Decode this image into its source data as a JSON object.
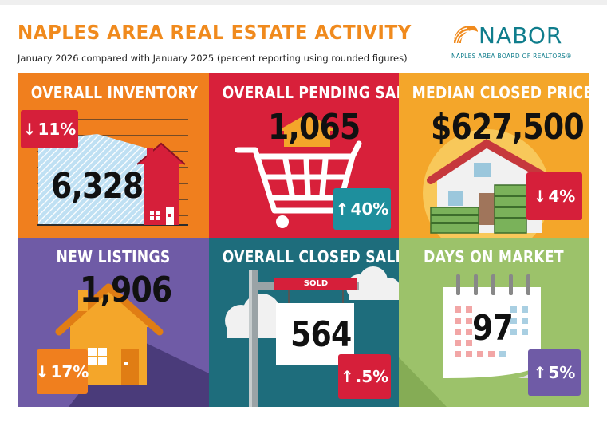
{
  "header": {
    "title": "NAPLES AREA REAL ESTATE ACTIVITY",
    "subtitle": "January 2026 compared with January 2025 (percent reporting using rounded figures)"
  },
  "logo": {
    "name": "NABOR",
    "tagline": "NAPLES AREA BOARD OF REALTORS®"
  },
  "tiles": {
    "inventory": {
      "title": "OVERALL INVENTORY",
      "value": "6,328",
      "change": "11%",
      "direction": "down",
      "arrow": "↓",
      "color": "#f07f1e",
      "badge_color": "#d61f3a"
    },
    "pending": {
      "title": "OVERALL PENDING SALES",
      "value": "1,065",
      "change": "40%",
      "direction": "up",
      "arrow": "↑",
      "color": "#d8203a",
      "badge_color": "#1e8f9d"
    },
    "median": {
      "title": "MEDIAN CLOSED PRICE",
      "value": "$627,500",
      "change": "4%",
      "direction": "down",
      "arrow": "↓",
      "color": "#f4a62a",
      "badge_color": "#d61f3a"
    },
    "listings": {
      "title": "NEW LISTINGS",
      "value": "1,906",
      "change": "17%",
      "direction": "down",
      "arrow": "↓",
      "color": "#6f5ba6",
      "badge_color": "#f07f1e"
    },
    "closed": {
      "title": "OVERALL CLOSED SALES",
      "value": "564",
      "change": ".5%",
      "direction": "up",
      "arrow": "↑",
      "sign_label": "SOLD",
      "color": "#1e6d7c",
      "badge_color": "#d61f3a"
    },
    "dom": {
      "title": "DAYS ON MARKET",
      "value": "97",
      "change": "5%",
      "direction": "up",
      "arrow": "↑",
      "color": "#9cc26a",
      "badge_color": "#6f5ba6"
    }
  }
}
